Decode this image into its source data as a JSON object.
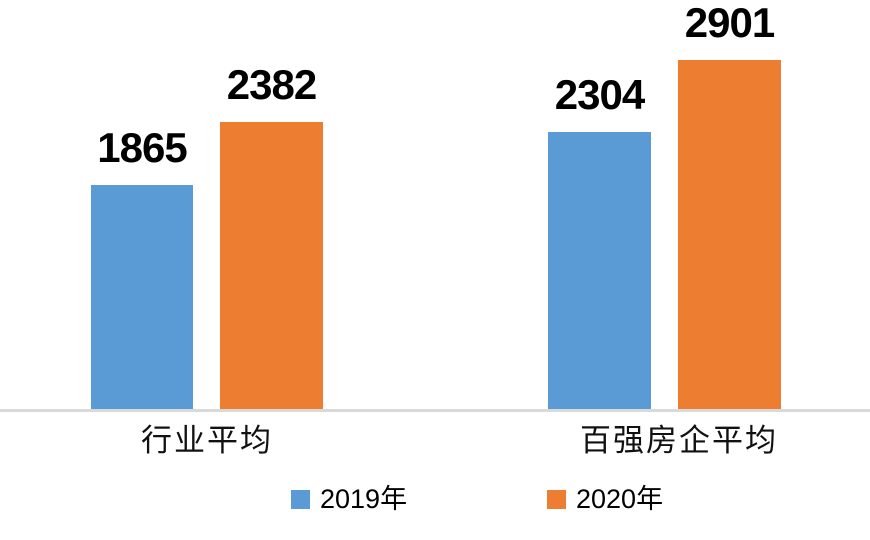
{
  "chart_data": {
    "type": "bar",
    "title": "",
    "categories": [
      "行业平均",
      "百强房企平均"
    ],
    "series": [
      {
        "name": "2019年",
        "color": "#5B9BD5",
        "values": [
          1865,
          2304
        ]
      },
      {
        "name": "2020年",
        "color": "#ED7D31",
        "values": [
          2382,
          2901
        ]
      }
    ],
    "xlabel": "",
    "ylabel": "",
    "ylim": [
      0,
      3400
    ],
    "grid": false,
    "legend_position": "bottom",
    "axis_line_color": "#D9D9D9",
    "data_label_color": "#000000"
  }
}
